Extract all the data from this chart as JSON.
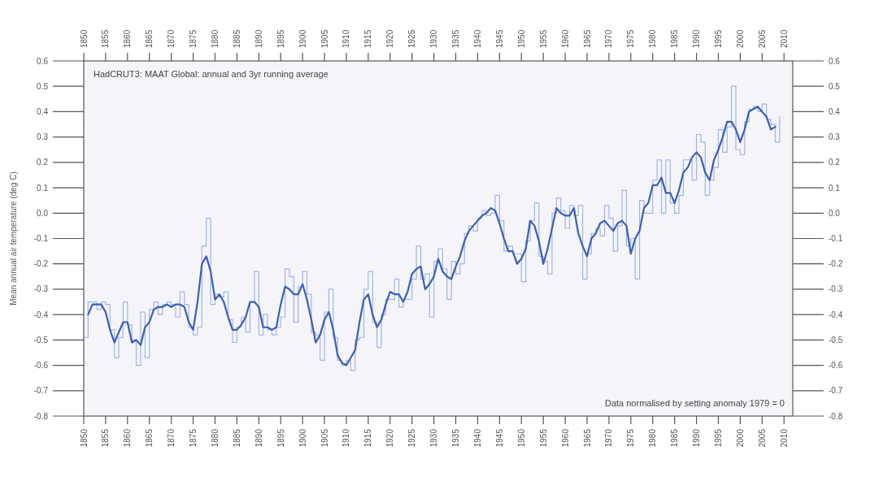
{
  "chart_data": {
    "type": "line",
    "title": "HadCRUT3: MAAT Global: annual and 3yr running average",
    "ylabel": "Mean annual air temperature (deg C)",
    "annotations": [
      "Data normalised by setting anomaly 1979 = 0"
    ],
    "xlim": [
      1850,
      2012
    ],
    "xticks": [
      1850,
      1855,
      1860,
      1865,
      1870,
      1875,
      1880,
      1885,
      1890,
      1895,
      1900,
      1905,
      1910,
      1915,
      1920,
      1925,
      1930,
      1935,
      1940,
      1945,
      1950,
      1955,
      1960,
      1965,
      1970,
      1975,
      1980,
      1985,
      1990,
      1995,
      2000,
      2005,
      2010
    ],
    "x2lim": [
      1850,
      2012
    ],
    "x2ticks": [
      1850,
      1855,
      1860,
      1865,
      1870,
      1875,
      1880,
      1885,
      1890,
      1895,
      1900,
      1905,
      1910,
      1915,
      1920,
      1925,
      1930,
      1935,
      1940,
      1945,
      1950,
      1955,
      1960,
      1965,
      1970,
      1975,
      1980,
      1985,
      1990,
      1995,
      2000,
      2005,
      2010
    ],
    "ylim": [
      -0.8,
      0.6
    ],
    "yticks": [
      -0.8,
      -0.7,
      -0.6,
      -0.5,
      -0.4,
      -0.3,
      -0.2,
      -0.1,
      {
        "value": 0,
        "label": "0.0"
      },
      0.1,
      0.2,
      0.3,
      0.4,
      0.5,
      0.6
    ],
    "y2lim": [
      -0.8,
      0.6
    ],
    "y2ticks": [
      -0.8,
      -0.7,
      -0.6,
      -0.5,
      -0.4,
      -0.3,
      -0.2,
      -0.1,
      {
        "value": 0,
        "label": "0.0"
      },
      0.1,
      0.2,
      0.3,
      0.4,
      0.5,
      0.6
    ],
    "grid": false,
    "series": [
      {
        "type": "step",
        "color": "#9fb6ea",
        "x": [
          1850,
          1851,
          1852,
          1853,
          1854,
          1855,
          1856,
          1857,
          1858,
          1859,
          1860,
          1861,
          1862,
          1863,
          1864,
          1865,
          1866,
          1867,
          1868,
          1869,
          1870,
          1871,
          1872,
          1873,
          1874,
          1875,
          1876,
          1877,
          1878,
          1879,
          1880,
          1881,
          1882,
          1883,
          1884,
          1885,
          1886,
          1887,
          1888,
          1889,
          1890,
          1891,
          1892,
          1893,
          1894,
          1895,
          1896,
          1897,
          1898,
          1899,
          1900,
          1901,
          1902,
          1903,
          1904,
          1905,
          1906,
          1907,
          1908,
          1909,
          1910,
          1911,
          1912,
          1913,
          1914,
          1915,
          1916,
          1917,
          1918,
          1919,
          1920,
          1921,
          1922,
          1923,
          1924,
          1925,
          1926,
          1927,
          1928,
          1929,
          1930,
          1931,
          1932,
          1933,
          1934,
          1935,
          1936,
          1937,
          1938,
          1939,
          1940,
          1941,
          1942,
          1943,
          1944,
          1945,
          1946,
          1947,
          1948,
          1949,
          1950,
          1951,
          1952,
          1953,
          1954,
          1955,
          1956,
          1957,
          1958,
          1959,
          1960,
          1961,
          1962,
          1963,
          1964,
          1965,
          1966,
          1967,
          1968,
          1969,
          1970,
          1971,
          1972,
          1973,
          1974,
          1975,
          1976,
          1977,
          1978,
          1979,
          1980,
          1981,
          1982,
          1983,
          1984,
          1985,
          1986,
          1987,
          1988,
          1989,
          1990,
          1991,
          1992,
          1993,
          1994,
          1995,
          1996,
          1997,
          1998,
          1999,
          2000,
          2001,
          2002,
          2003,
          2004,
          2005,
          2006,
          2007,
          2008,
          2009
        ],
        "values": [
          -0.49,
          -0.35,
          -0.35,
          -0.38,
          -0.35,
          -0.36,
          -0.46,
          -0.57,
          -0.49,
          -0.35,
          -0.44,
          -0.5,
          -0.6,
          -0.39,
          -0.57,
          -0.38,
          -0.35,
          -0.4,
          -0.36,
          -0.35,
          -0.36,
          -0.41,
          -0.31,
          -0.36,
          -0.45,
          -0.48,
          -0.45,
          -0.13,
          -0.02,
          -0.36,
          -0.32,
          -0.33,
          -0.31,
          -0.42,
          -0.51,
          -0.45,
          -0.41,
          -0.47,
          -0.35,
          -0.23,
          -0.48,
          -0.4,
          -0.46,
          -0.48,
          -0.45,
          -0.41,
          -0.22,
          -0.25,
          -0.43,
          -0.29,
          -0.23,
          -0.32,
          -0.47,
          -0.48,
          -0.58,
          -0.39,
          -0.3,
          -0.49,
          -0.58,
          -0.6,
          -0.58,
          -0.62,
          -0.5,
          -0.49,
          -0.3,
          -0.23,
          -0.43,
          -0.53,
          -0.4,
          -0.34,
          -0.34,
          -0.26,
          -0.37,
          -0.34,
          -0.34,
          -0.26,
          -0.13,
          -0.26,
          -0.24,
          -0.41,
          -0.19,
          -0.14,
          -0.22,
          -0.34,
          -0.19,
          -0.24,
          -0.2,
          -0.08,
          -0.05,
          -0.07,
          -0.02,
          0.01,
          -0.01,
          0.0,
          0.07,
          -0.03,
          -0.15,
          -0.13,
          -0.16,
          -0.16,
          -0.27,
          -0.11,
          -0.03,
          0.04,
          -0.17,
          -0.19,
          -0.24,
          0.0,
          0.06,
          0.01,
          -0.06,
          0.03,
          -0.01,
          0.03,
          -0.26,
          -0.16,
          -0.08,
          -0.06,
          -0.09,
          0.03,
          -0.02,
          -0.15,
          -0.05,
          0.09,
          -0.13,
          -0.1,
          -0.26,
          0.05,
          0.0,
          0.0,
          0.13,
          0.21,
          0.0,
          0.21,
          0.04,
          0.0,
          0.07,
          0.21,
          0.21,
          0.13,
          0.31,
          0.28,
          0.07,
          0.13,
          0.18,
          0.33,
          0.24,
          0.34,
          0.5,
          0.25,
          0.23,
          0.36,
          0.41,
          0.42,
          0.4,
          0.43,
          0.37,
          0.35,
          0.28,
          0.38
        ]
      },
      {
        "color": "#3b5fb5",
        "x": [
          1851,
          1852,
          1853,
          1854,
          1855,
          1856,
          1857,
          1858,
          1859,
          1860,
          1861,
          1862,
          1863,
          1864,
          1865,
          1866,
          1867,
          1868,
          1869,
          1870,
          1871,
          1872,
          1873,
          1874,
          1875,
          1876,
          1877,
          1878,
          1879,
          1880,
          1881,
          1882,
          1883,
          1884,
          1885,
          1886,
          1887,
          1888,
          1889,
          1890,
          1891,
          1892,
          1893,
          1894,
          1895,
          1896,
          1897,
          1898,
          1899,
          1900,
          1901,
          1902,
          1903,
          1904,
          1905,
          1906,
          1907,
          1908,
          1909,
          1910,
          1911,
          1912,
          1913,
          1914,
          1915,
          1916,
          1917,
          1918,
          1919,
          1920,
          1921,
          1922,
          1923,
          1924,
          1925,
          1926,
          1927,
          1928,
          1929,
          1930,
          1931,
          1932,
          1933,
          1934,
          1935,
          1936,
          1937,
          1938,
          1939,
          1940,
          1941,
          1942,
          1943,
          1944,
          1945,
          1946,
          1947,
          1948,
          1949,
          1950,
          1951,
          1952,
          1953,
          1954,
          1955,
          1956,
          1957,
          1958,
          1959,
          1960,
          1961,
          1962,
          1963,
          1964,
          1965,
          1966,
          1967,
          1968,
          1969,
          1970,
          1971,
          1972,
          1973,
          1974,
          1975,
          1976,
          1977,
          1978,
          1979,
          1980,
          1981,
          1982,
          1983,
          1984,
          1985,
          1986,
          1987,
          1988,
          1989,
          1990,
          1991,
          1992,
          1993,
          1994,
          1995,
          1996,
          1997,
          1998,
          1999,
          2000,
          2001,
          2002,
          2003,
          2004,
          2005,
          2006,
          2007,
          2008
        ],
        "values": [
          -0.4,
          -0.36,
          -0.36,
          -0.36,
          -0.39,
          -0.46,
          -0.51,
          -0.47,
          -0.43,
          -0.43,
          -0.51,
          -0.5,
          -0.52,
          -0.45,
          -0.43,
          -0.38,
          -0.37,
          -0.37,
          -0.36,
          -0.37,
          -0.36,
          -0.36,
          -0.37,
          -0.43,
          -0.46,
          -0.35,
          -0.2,
          -0.17,
          -0.23,
          -0.34,
          -0.32,
          -0.35,
          -0.41,
          -0.46,
          -0.46,
          -0.44,
          -0.41,
          -0.35,
          -0.35,
          -0.37,
          -0.45,
          -0.45,
          -0.46,
          -0.45,
          -0.36,
          -0.29,
          -0.3,
          -0.32,
          -0.32,
          -0.28,
          -0.34,
          -0.42,
          -0.51,
          -0.48,
          -0.42,
          -0.39,
          -0.46,
          -0.56,
          -0.59,
          -0.6,
          -0.57,
          -0.54,
          -0.43,
          -0.34,
          -0.32,
          -0.4,
          -0.45,
          -0.42,
          -0.36,
          -0.31,
          -0.32,
          -0.32,
          -0.35,
          -0.31,
          -0.24,
          -0.22,
          -0.21,
          -0.3,
          -0.28,
          -0.25,
          -0.18,
          -0.23,
          -0.25,
          -0.26,
          -0.21,
          -0.17,
          -0.11,
          -0.07,
          -0.05,
          -0.03,
          -0.01,
          0.0,
          0.02,
          0.01,
          -0.04,
          -0.1,
          -0.15,
          -0.15,
          -0.2,
          -0.18,
          -0.14,
          -0.03,
          -0.05,
          -0.11,
          -0.2,
          -0.14,
          -0.06,
          0.02,
          0.0,
          -0.01,
          -0.01,
          0.02,
          -0.08,
          -0.13,
          -0.17,
          -0.1,
          -0.08,
          -0.04,
          -0.03,
          -0.05,
          -0.07,
          -0.04,
          -0.03,
          -0.05,
          -0.16,
          -0.1,
          -0.07,
          0.02,
          0.04,
          0.11,
          0.11,
          0.14,
          0.08,
          0.08,
          0.04,
          0.09,
          0.16,
          0.18,
          0.22,
          0.24,
          0.22,
          0.16,
          0.13,
          0.21,
          0.25,
          0.3,
          0.36,
          0.36,
          0.33,
          0.28,
          0.33,
          0.4,
          0.41,
          0.42,
          0.4,
          0.38,
          0.33,
          0.34
        ]
      }
    ]
  }
}
